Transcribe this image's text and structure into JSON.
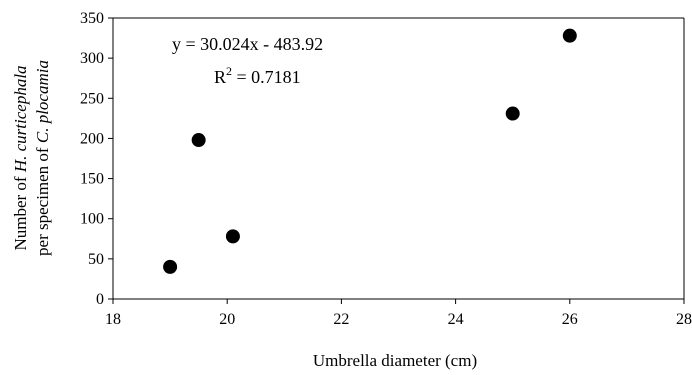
{
  "chart_data": {
    "type": "scatter",
    "title": "",
    "xlabel": "Umbrella diameter (cm)",
    "ylabel_line1": [
      "Number of ",
      "H. curticephala"
    ],
    "ylabel_line2": [
      "per specimen of ",
      "C. plocamia"
    ],
    "xlim": [
      18,
      28
    ],
    "ylim": [
      0,
      350
    ],
    "x_ticks": [
      18,
      20,
      22,
      24,
      26,
      28
    ],
    "y_ticks": [
      0,
      50,
      100,
      150,
      200,
      250,
      300,
      350
    ],
    "x_tick_labels": [
      "18",
      "20",
      "22",
      "24",
      "26",
      "28"
    ],
    "y_tick_labels": [
      "0",
      "50",
      "100",
      "150",
      "200",
      "250",
      "300",
      "350"
    ],
    "points": [
      {
        "x": 19.0,
        "y": 40
      },
      {
        "x": 19.5,
        "y": 198
      },
      {
        "x": 20.1,
        "y": 78
      },
      {
        "x": 25.0,
        "y": 231
      },
      {
        "x": 26.0,
        "y": 328
      }
    ],
    "grid": false,
    "legend": "none",
    "point_color": "#000000",
    "annotations": {
      "equation": "y = 30.024x - 483.92",
      "r2_prefix": "R",
      "r2_exp": "2",
      "r2_value": " = 0.7181"
    }
  }
}
